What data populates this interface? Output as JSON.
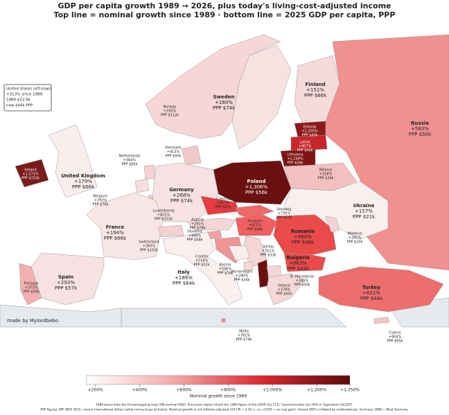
{
  "title": [
    "GDP per capita growth 1989 → 2026, plus today's living-cost-adjusted income",
    "Top line = nominal growth since 1989   ·   bottom line = 2025 GDP per capita, PPP"
  ],
  "us_box": {
    "lines": [
      "United States  (off-map)",
      "+313%  since 1989",
      "1989  $22.9k",
      "now  $94k PPP"
    ]
  },
  "countries": [
    {
      "name": "Finland",
      "growth": "+151%",
      "ppp": "PPP $66k",
      "color": "#f5dada"
    },
    {
      "name": "Sweden",
      "growth": "+180%",
      "ppp": "PPP $74k",
      "color": "#f7e2e2"
    },
    {
      "name": "Norway",
      "growth": "+335%",
      "ppp": "PPP $112k",
      "color": "#f6d6d6"
    },
    {
      "name": "Estonia",
      "growth": "+1,205%",
      "ppp": "PPP $49k",
      "color": "#8b1a1a"
    },
    {
      "name": "Latvia",
      "growth": "+907%",
      "ppp": "PPP $44k",
      "color": "#c7262b"
    },
    {
      "name": "Lithuania",
      "growth": "+1,248%",
      "ppp": "PPP $58k",
      "color": "#7d1414"
    },
    {
      "name": "Russia",
      "growth": "+583%",
      "ppp": "PPP $50k",
      "color": "#f19090"
    },
    {
      "name": "Denmark",
      "growth": "+413%",
      "ppp": "PPP $90k",
      "color": "#f4c9c9"
    },
    {
      "name": "Netherlands",
      "growth": "+364%",
      "ppp": "PPP $85k",
      "color": "#f5d2d2"
    },
    {
      "name": "Ireland",
      "growth": "+1,171%",
      "ppp": "PPP $153k",
      "color": "#7a1b1b"
    },
    {
      "name": "United Kingdom",
      "growth": "+179%",
      "ppp": "PPP $66k",
      "color": "#f9eded"
    },
    {
      "name": "Belarus",
      "growth": "+318%",
      "ppp": "PPP $34k",
      "color": "#f3c0c0"
    },
    {
      "name": "Poland",
      "growth": "+1,306%",
      "ppp": "PPP $56k",
      "color": "#6a1010"
    },
    {
      "name": "Germany",
      "growth": "+268%",
      "ppp": "PPP $74k",
      "color": "#f6e2e2"
    },
    {
      "name": "Belgium",
      "growth": "+293%",
      "ppp": "PPP $76k",
      "color": "#f5dede"
    },
    {
      "name": "Czechia",
      "growth": "+957%",
      "ppp": "PPP $60k",
      "color": "#e43c40"
    },
    {
      "name": "Ukraine",
      "growth": "+157%",
      "ppp": "PPP $21k",
      "color": "#faefef"
    },
    {
      "name": "Luxembourg",
      "growth": "+421%",
      "ppp": "PPP $153k",
      "color": "#f4c4c4"
    },
    {
      "name": "Slovakia",
      "growth": "+730%",
      "ppp": "PPP $50k",
      "color": "#f06868"
    },
    {
      "name": "France",
      "growth": "+194%",
      "ppp": "PPP $66k",
      "color": "#f8e6e6"
    },
    {
      "name": "Austria",
      "growth": "+291%",
      "ppp": "PPP $78k",
      "color": "#f5d6d6"
    },
    {
      "name": "Hungary",
      "growth": "+813%",
      "ppp": "PPP $48k",
      "color": "#f06060"
    },
    {
      "name": "Romania",
      "growth": "+960%",
      "ppp": "PPP $49k",
      "color": "#ea4a4a"
    },
    {
      "name": "Moldova",
      "growth": "+285%",
      "ppp": "PPP $20k",
      "color": "#f4d4d4"
    },
    {
      "name": "Switzerland",
      "growth": "+360%",
      "ppp": "PPP $102k",
      "color": "#f4d0d0"
    },
    {
      "name": "Slovenia",
      "growth": "+488%",
      "ppp": "PPP $58k",
      "color": "#f0a0a0"
    },
    {
      "name": "Croatia",
      "growth": "+518%",
      "ppp": "PPP $52k",
      "color": "#ee9494"
    },
    {
      "name": "Serbia",
      "growth": "+311%",
      "ppp": "PPP $33k",
      "color": "#f5d6d6"
    },
    {
      "name": "Bosnia",
      "growth": "+156%",
      "ppp": "PPP $26k",
      "color": "#faeeee"
    },
    {
      "name": "Montenegro",
      "growth": "+290%",
      "ppp": "PPP $34k",
      "color": "#f5d6d6"
    },
    {
      "name": "Bulgaria",
      "growth": "+863%",
      "ppp": "PPP $43k",
      "color": "#ea4a4a"
    },
    {
      "name": "Italy",
      "growth": "+186%",
      "ppp": "PPP $64k",
      "color": "#faeeee"
    },
    {
      "name": "Spain",
      "growth": "+293%",
      "ppp": "PPP $57k",
      "color": "#f6e2e2"
    },
    {
      "name": "Portugal",
      "growth": "+373%",
      "ppp": "PPP $50k",
      "color": "#f3b0b0"
    },
    {
      "name": "Albania",
      "growth": "+1,382%",
      "ppp": "PPP $23k",
      "color": "#6b0f0f"
    },
    {
      "name": "N. Macedonia",
      "growth": "+185%",
      "ppp": "PPP $30k",
      "color": "#f5d6d6"
    },
    {
      "name": "Greece",
      "growth": "+278%",
      "ppp": "PPP $45k",
      "color": "#f5d8d8"
    },
    {
      "name": "Turkey",
      "growth": "+601%",
      "ppp": "PPP $44k",
      "color": "#ee6e6e"
    },
    {
      "name": "Malta",
      "growth": "+761%",
      "ppp": "PPP $79k",
      "color": "#ee8c8c"
    },
    {
      "name": "Cyprus",
      "growth": "+404%",
      "ppp": "PPP $65k",
      "color": "#f3c4c4"
    }
  ],
  "credit": "made by Mylordbebo",
  "colorbar": {
    "lim": [
      160,
      1350
    ],
    "colors": [
      "#ffffff",
      "#f4a8a8",
      "#d9272e",
      "#5a0a0a"
    ],
    "ticks": [
      {
        "value": 200,
        "label": "+200%"
      },
      {
        "value": 400,
        "label": "+400%"
      },
      {
        "value": 600,
        "label": "+600%"
      },
      {
        "value": 800,
        "label": "+800%"
      },
      {
        "value": 1000,
        "label": "+1,000%"
      },
      {
        "value": 1200,
        "label": "+1,200%"
      },
      {
        "value": 1350,
        "label": "+1,350%"
      }
    ],
    "label": "Nominal growth since 1989"
  },
  "footnotes": [
    "1989 bases from the Forummapping map (UN nominal USD). Successor states inherit the 1989 figure of the USSR ($2,711), Czechoslovakia ($3,764) or Yugoslavia ($4,297).",
    "PPP figures: IMF WEO 2025, current international dollars (what money buys at home). Nominal growth is not inflation-adjusted (US CPI ≈ 2.55 ×, so +155% ≈ no real gain). Ireland GDP is inflated by multinationals. Germany 1989 = West Germany."
  ]
}
